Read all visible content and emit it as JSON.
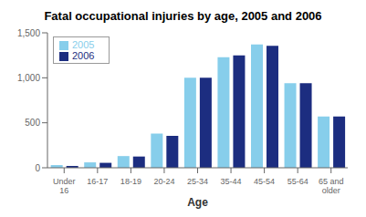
{
  "chart_data": {
    "type": "bar",
    "title": "Fatal occupational injuries by age, 2005 and 2006",
    "xlabel": "Age",
    "categories": [
      "Under\n16",
      "16-17",
      "18-19",
      "20-24",
      "25-34",
      "35-44",
      "45-54",
      "55-64",
      "65 and\nolder"
    ],
    "series": [
      {
        "name": "2005",
        "color": "#87CEEB",
        "values": [
          30,
          60,
          130,
          380,
          1000,
          1230,
          1370,
          940,
          570
        ]
      },
      {
        "name": "2006",
        "color": "#1C2D80",
        "values": [
          20,
          55,
          125,
          355,
          1000,
          1250,
          1355,
          940,
          570
        ]
      }
    ],
    "ylim": [
      0,
      1500
    ],
    "yticks": [
      0,
      500,
      {
        "value": 1000,
        "label": "1,000"
      },
      {
        "value": 1500,
        "label": "1,500"
      }
    ],
    "grid": false,
    "legend": "upper left"
  }
}
